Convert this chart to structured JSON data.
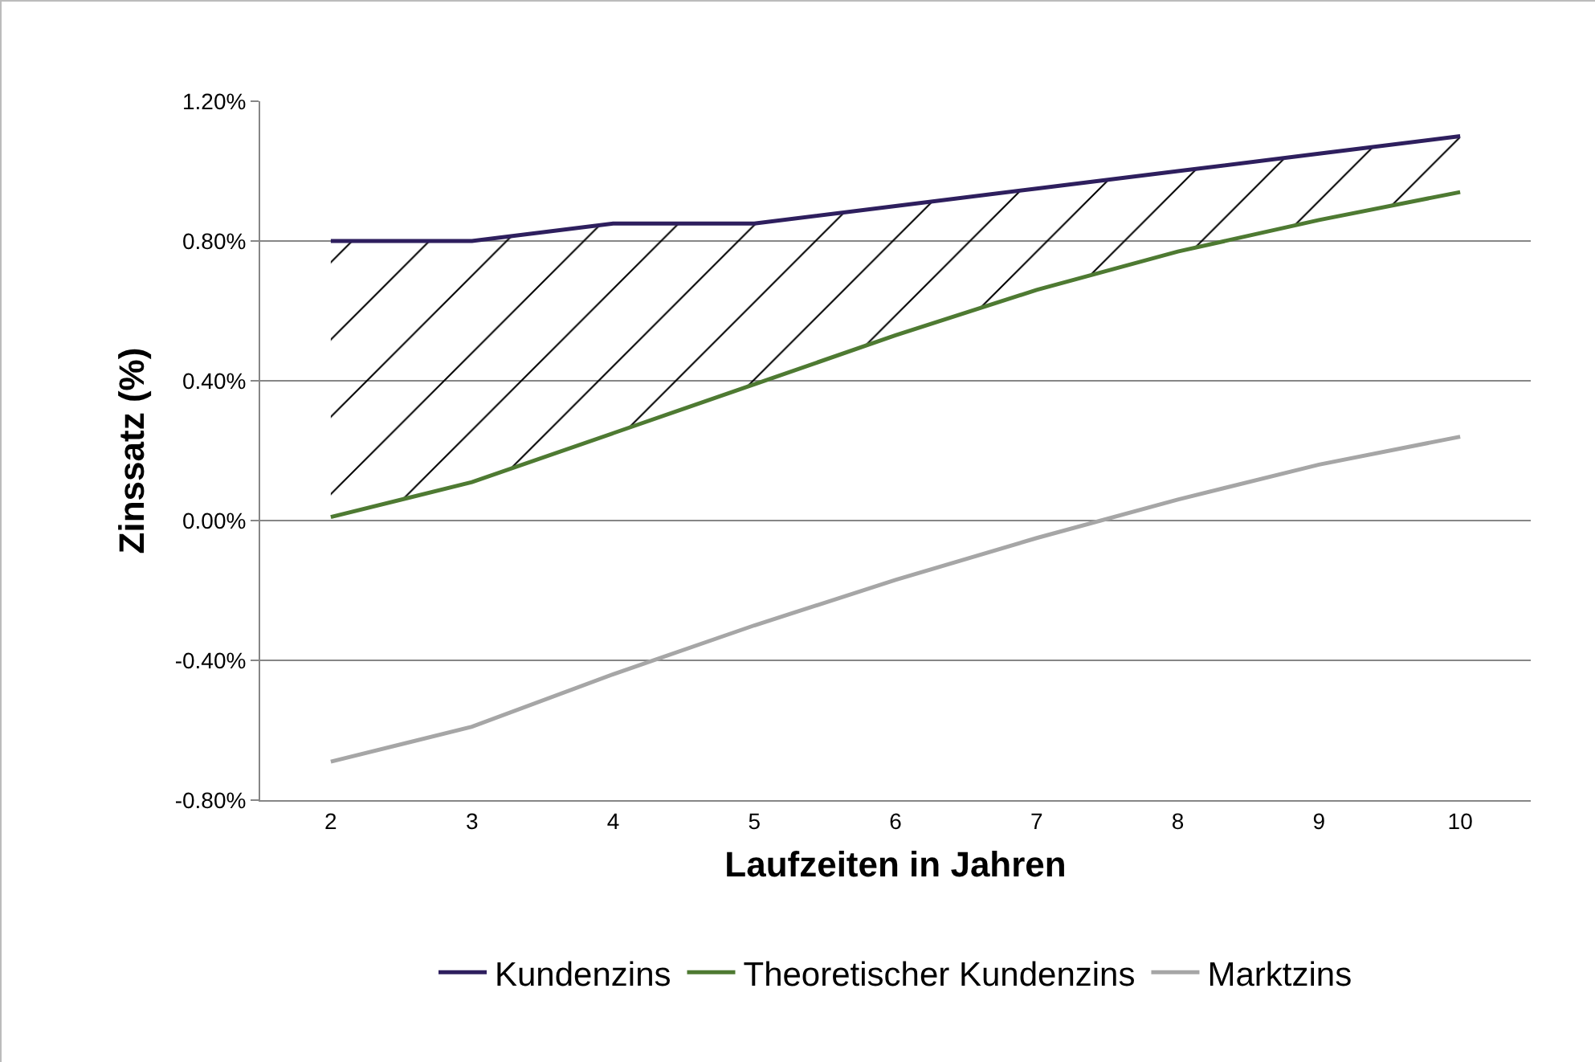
{
  "chart_data": {
    "type": "line",
    "xlabel": "Laufzeiten in Jahren",
    "ylabel": "Zinssatz (%)",
    "categories": [
      "2",
      "3",
      "4",
      "5",
      "6",
      "7",
      "8",
      "9",
      "10"
    ],
    "series": [
      {
        "name": "Kundenzins",
        "color": "#2e1f5e",
        "values": [
          0.8,
          0.8,
          0.85,
          0.85,
          0.9,
          0.95,
          1.0,
          1.05,
          1.1
        ],
        "lower": [
          0.01,
          0.11,
          0.25,
          0.39,
          0.53,
          0.66,
          0.77,
          0.86,
          0.94
        ],
        "upper": [
          0.8,
          0.8,
          0.85,
          0.85,
          0.9,
          0.95,
          1.0,
          1.05,
          1.1
        ]
      },
      {
        "name": "Theoretischer Kundenzins",
        "color": "#4e7a32",
        "values": [
          0.01,
          0.11,
          0.25,
          0.39,
          0.53,
          0.66,
          0.77,
          0.86,
          0.94
        ]
      },
      {
        "name": "Marktzins",
        "color": "#a6a6a6",
        "values": [
          -0.69,
          -0.59,
          -0.44,
          -0.3,
          -0.17,
          -0.05,
          0.06,
          0.16,
          0.24
        ]
      }
    ],
    "ylim": [
      -0.8,
      1.2
    ],
    "yticks": [
      {
        "value": -0.8,
        "label": "-0.80%"
      },
      {
        "value": -0.4,
        "label": "-0.40%"
      },
      {
        "value": 0,
        "label": "0.00%"
      },
      {
        "value": 0.4,
        "label": "0.40%"
      },
      {
        "value": 0.8,
        "label": "0.80%"
      },
      {
        "value": 1.2,
        "label": "1.20%"
      }
    ],
    "grid": "y",
    "legend": "bottom",
    "marker": "none",
    "line_style": "solid"
  }
}
